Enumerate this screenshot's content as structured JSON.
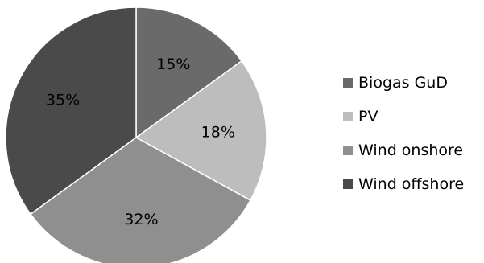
{
  "chart_data": {
    "type": "pie",
    "title": "",
    "legend_position": "right",
    "start_angle": "12 o'clock",
    "direction": "clockwise",
    "slices": [
      {
        "label": "Biogas GuD",
        "value": 15,
        "display": "15%",
        "color": "#6a6a6a"
      },
      {
        "label": "PV",
        "value": 18,
        "display": "18%",
        "color": "#bdbdbd"
      },
      {
        "label": "Wind onshore",
        "value": 32,
        "display": "32%",
        "color": "#8f8f8f"
      },
      {
        "label": "Wind offshore",
        "value": 35,
        "display": "35%",
        "color": "#4a4a4a"
      }
    ]
  }
}
